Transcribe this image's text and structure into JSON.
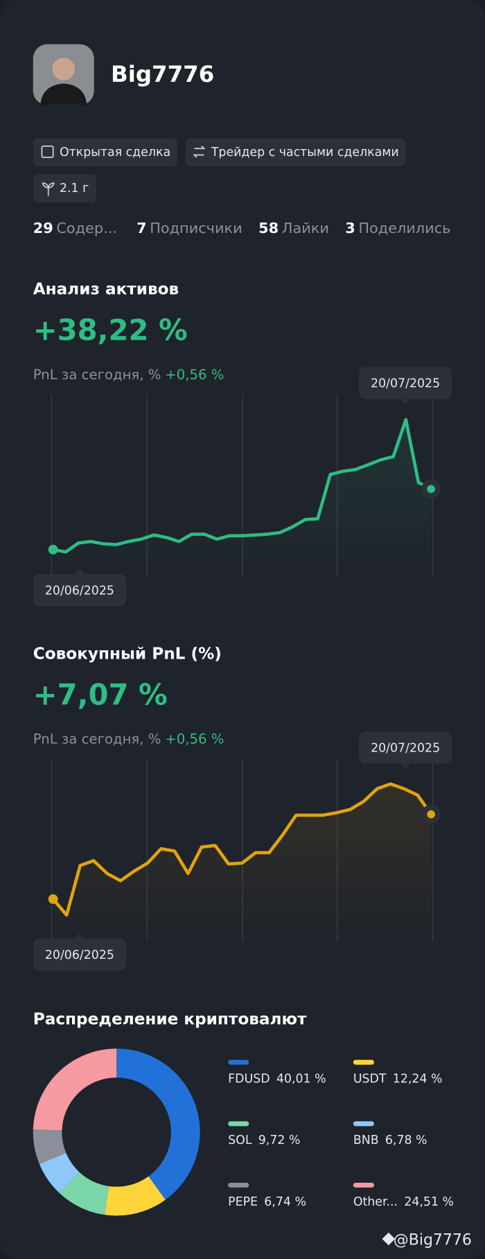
{
  "profile": {
    "username": "Big7776",
    "badges": [
      "Открытая сделка",
      "Трейдер с частыми сделками",
      "2.1 г"
    ],
    "stats": [
      {
        "value": "29",
        "label": "Содер..."
      },
      {
        "value": "7",
        "label": "Подписчики"
      },
      {
        "value": "58",
        "label": "Лайки"
      },
      {
        "value": "3",
        "label": "Поделились"
      }
    ]
  },
  "chart_data": [
    {
      "type": "line",
      "title": "Анализ активов",
      "headline": "+38,22 %",
      "subtitle": "PnL за сегодня, %",
      "subtitle_value": "+0,56 %",
      "start_label": "20/06/2025",
      "end_label": "20/07/2025",
      "color": "#2ebd85",
      "ylim": [
        -17,
        98
      ],
      "values": [
        0,
        -1.5,
        4.1,
        5.1,
        3.6,
        3.1,
        5.1,
        6.6,
        9.2,
        7.6,
        5.1,
        9.7,
        9.7,
        6.6,
        8.7,
        8.7,
        9.2,
        9.7,
        10.7,
        14.3,
        18.9,
        19.4,
        47.4,
        49.4,
        50.5,
        53.5,
        56.6,
        58.6,
        82.0,
        42.3,
        38.22
      ]
    },
    {
      "type": "line",
      "title": "Совокупный PnL (%)",
      "headline": "+7,07 %",
      "subtitle": "PnL за сегодня, %",
      "subtitle_value": "+0,56 %",
      "start_label": "20/06/2025",
      "end_label": "20/07/2025",
      "color": "#e0a40e",
      "ylim": [
        -3.5,
        11.7
      ],
      "values": [
        0,
        -1.33,
        2.8,
        3.2,
        2.13,
        1.53,
        2.33,
        3.0,
        4.2,
        4.0,
        2.13,
        4.34,
        4.47,
        2.93,
        3.0,
        3.87,
        3.87,
        5.34,
        7.0,
        7.0,
        7.0,
        7.2,
        7.47,
        8.14,
        9.2,
        9.6,
        9.2,
        8.67,
        7.07
      ]
    },
    {
      "type": "pie",
      "title": "Распределение криптовалют",
      "categories": [
        "FDUSD",
        "USDT",
        "SOL",
        "BNB",
        "PEPE",
        "Other..."
      ],
      "values": [
        40.01,
        12.24,
        9.72,
        6.78,
        6.74,
        24.51
      ],
      "value_labels": [
        "40,01 %",
        "12,24 %",
        "9,72 %",
        "6,78 %",
        "6,74 %",
        "24,51 %"
      ],
      "colors": [
        "#2271d9",
        "#fdd43a",
        "#7ad6a8",
        "#8ec8fb",
        "#8a8f99",
        "#f79aa3"
      ]
    }
  ],
  "watermark": "@Big7776"
}
